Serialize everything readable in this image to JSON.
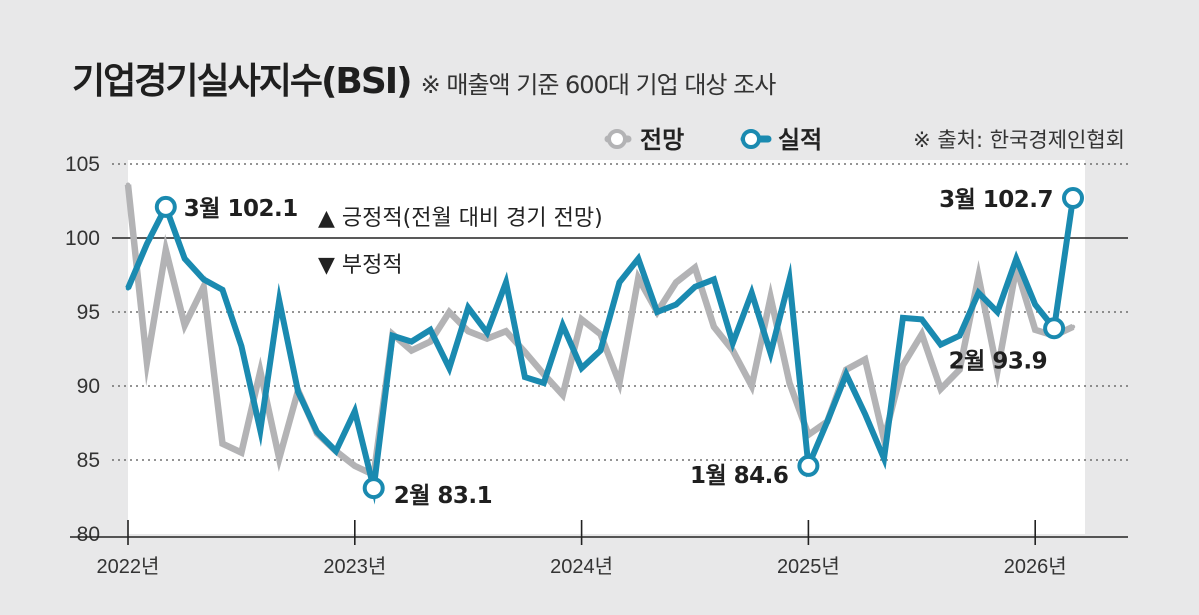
{
  "title": "기업경기실사지수(BSI)",
  "subtitle": "※ 매출액 기준 600대 기업 대상 조사",
  "source": "※ 출처: 한국경제인협회",
  "notes": {
    "positive": "▲ 긍정적(전월 대비 경기 전망)",
    "negative": "▼ 부정적"
  },
  "colors": {
    "outlook": "#b3b3b5",
    "actual": "#1a8ab0",
    "background": "#e8e8e9",
    "plot_area": "#ffffff"
  },
  "chart_data": {
    "type": "line",
    "x_labels": [
      "2022년",
      "2023년",
      "2024년",
      "2025년",
      "2026년"
    ],
    "ylim": [
      80,
      105
    ],
    "yticks": [
      80,
      85,
      90,
      95,
      100,
      105
    ],
    "reference_line": 100,
    "x": [
      "2022-01",
      "2022-02",
      "2022-03",
      "2022-04",
      "2022-05",
      "2022-06",
      "2022-07",
      "2022-08",
      "2022-09",
      "2022-10",
      "2022-11",
      "2022-12",
      "2023-01",
      "2023-02",
      "2023-03",
      "2023-04",
      "2023-05",
      "2023-06",
      "2023-07",
      "2023-08",
      "2023-09",
      "2023-10",
      "2023-11",
      "2023-12",
      "2024-01",
      "2024-02",
      "2024-03",
      "2024-04",
      "2024-05",
      "2024-06",
      "2024-07",
      "2024-08",
      "2024-09",
      "2024-10",
      "2024-11",
      "2024-12",
      "2025-01",
      "2025-02",
      "2025-03",
      "2025-04",
      "2025-05",
      "2025-06",
      "2025-07",
      "2025-08",
      "2025-09",
      "2025-10",
      "2025-11",
      "2025-12",
      "2026-01",
      "2026-02",
      "2026-03"
    ],
    "series": [
      {
        "name": "전망",
        "color": "#b3b3b5",
        "values": [
          103.6,
          91.6,
          99.2,
          94.1,
          96.7,
          86.1,
          85.5,
          91.0,
          85.1,
          89.7,
          86.8,
          85.6,
          84.6,
          84.0,
          93.5,
          92.4,
          93.0,
          95.0,
          93.7,
          93.2,
          93.7,
          92.3,
          90.8,
          89.4,
          94.5,
          93.5,
          90.2,
          97.3,
          95.0,
          97.0,
          98.0,
          94.0,
          92.4,
          90.0,
          96.0,
          90.2,
          86.7,
          87.6,
          91.1,
          91.8,
          86.4,
          91.4,
          93.5,
          89.8,
          91.1,
          97.4,
          91.0,
          98.0,
          93.8,
          93.4,
          94.0
        ]
      },
      {
        "name": "실적",
        "color": "#1a8ab0",
        "values": [
          96.6,
          99.6,
          102.1,
          98.6,
          97.2,
          96.5,
          92.7,
          87.0,
          95.8,
          89.6,
          86.9,
          85.6,
          88.3,
          83.1,
          93.4,
          93.0,
          93.8,
          91.2,
          95.3,
          93.6,
          97.0,
          90.6,
          90.2,
          94.1,
          91.2,
          92.4,
          97.0,
          98.6,
          95.0,
          95.5,
          96.7,
          97.2,
          92.9,
          96.3,
          92.2,
          97.2,
          84.6,
          87.6,
          90.8,
          88.1,
          85.1,
          94.6,
          94.5,
          92.8,
          93.4,
          96.3,
          95.0,
          98.6,
          95.5,
          93.9,
          102.7
        ]
      }
    ],
    "annotations": [
      {
        "series": "실적",
        "x": "2022-03",
        "label": "3월 102.1"
      },
      {
        "series": "실적",
        "x": "2023-02",
        "label": "2월 83.1"
      },
      {
        "series": "실적",
        "x": "2025-01",
        "label": "1월 84.6"
      },
      {
        "series": "실적",
        "x": "2026-02",
        "label": "2월 93.9"
      },
      {
        "series": "실적",
        "x": "2026-03",
        "label": "3월 102.7"
      }
    ],
    "legend": "top-right",
    "grid": "dotted horizontal"
  }
}
